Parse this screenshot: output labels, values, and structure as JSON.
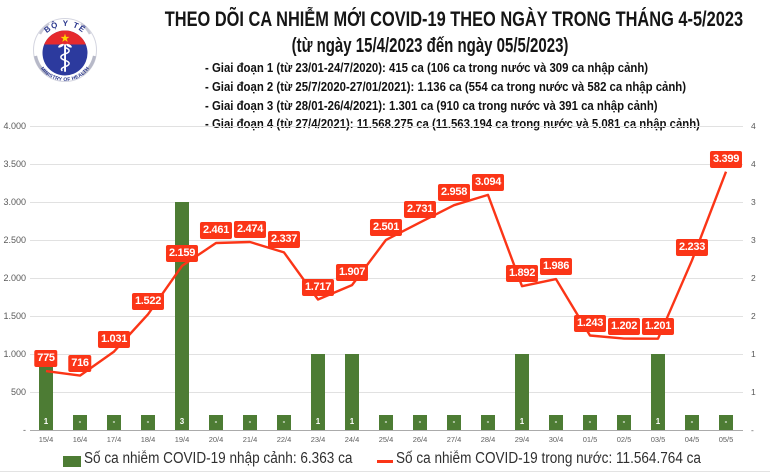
{
  "header": {
    "title": "THEO DÕI CA NHIỄM MỚI COVID-19 THEO NGÀY TRONG THÁNG 4-5/2023",
    "subtitle": "(từ ngày 15/4/2023 đến ngày 05/5/2023)",
    "periods": [
      "- Giai đoạn 1 (từ 23/01-24/7/2020): 415 ca (106 ca trong nước và 309 ca nhập cảnh)",
      "- Giai đoạn 2 (từ 25/7/2020-27/01/2021): 1.136 ca (554 ca trong nước và 582 ca nhập cảnh)",
      "- Giai đoạn 3 (từ 28/01-26/4/2021): 1.301 ca (910 ca trong nước và 391 ca nhập cảnh)",
      "- Giai đoạn 4 (từ 27/4/2021): 11.568.275 ca (11.563.194 ca trong nước và 5.081 ca nhập cảnh)"
    ],
    "logo": {
      "top_text": "BỘ Y TẾ",
      "bottom_text": "MINISTRY OF HEALTH"
    }
  },
  "legend": {
    "bar_label": "Số ca nhiễm COVID-19 nhập cảnh: 6.363 ca",
    "line_label": "Số ca nhiễm COVID-19 trong nước: 11.564.764 ca"
  },
  "chart_data": {
    "type": "combo",
    "categories": [
      "15/4",
      "16/4",
      "17/4",
      "18/4",
      "19/4",
      "20/4",
      "21/4",
      "22/4",
      "23/4",
      "24/4",
      "25/4",
      "26/4",
      "27/4",
      "28/4",
      "29/4",
      "30/4",
      "01/5",
      "02/5",
      "03/5",
      "04/5",
      "05/5"
    ],
    "bar_series": {
      "name": "Số ca nhiễm COVID-19 nhập cảnh",
      "color": "#4d7c34",
      "labels": [
        "1",
        "-",
        "-",
        "-",
        "3",
        "-",
        "-",
        "-",
        "1",
        "1",
        "-",
        "-",
        "-",
        "-",
        "1",
        "-",
        "-",
        "-",
        "1",
        "-",
        "-"
      ],
      "heights": [
        1000,
        200,
        200,
        200,
        3000,
        200,
        200,
        200,
        1000,
        1000,
        200,
        200,
        200,
        200,
        1000,
        200,
        200,
        200,
        1000,
        200,
        200
      ]
    },
    "line_series": {
      "name": "Số ca nhiễm COVID-19 trong nước",
      "color": "#fb3517",
      "values": [
        775,
        716,
        1031,
        1522,
        2159,
        2461,
        2474,
        2337,
        1717,
        1907,
        2501,
        2731,
        2958,
        3094,
        1892,
        1986,
        1243,
        1202,
        1201,
        2233,
        3399
      ],
      "labels": [
        "775",
        "716",
        "1.031",
        "1.522",
        "2.159",
        "2.461",
        "2.474",
        "2.337",
        "1.717",
        "1.907",
        "2.501",
        "2.731",
        "2.958",
        "3.094",
        "1.892",
        "1.986",
        "1.243",
        "1.202",
        "1.201",
        "2.233",
        "3.399"
      ]
    },
    "ylim": [
      0,
      4000
    ],
    "yticks_left": [
      "-",
      "500",
      "1.000",
      "1.500",
      "2.000",
      "2.500",
      "3.000",
      "3.500",
      "4.000"
    ],
    "yticks_right": [
      "-",
      "1",
      "1",
      "2",
      "2",
      "3",
      "3",
      "4",
      "4"
    ],
    "grid": true,
    "legend_position": "bottom"
  }
}
